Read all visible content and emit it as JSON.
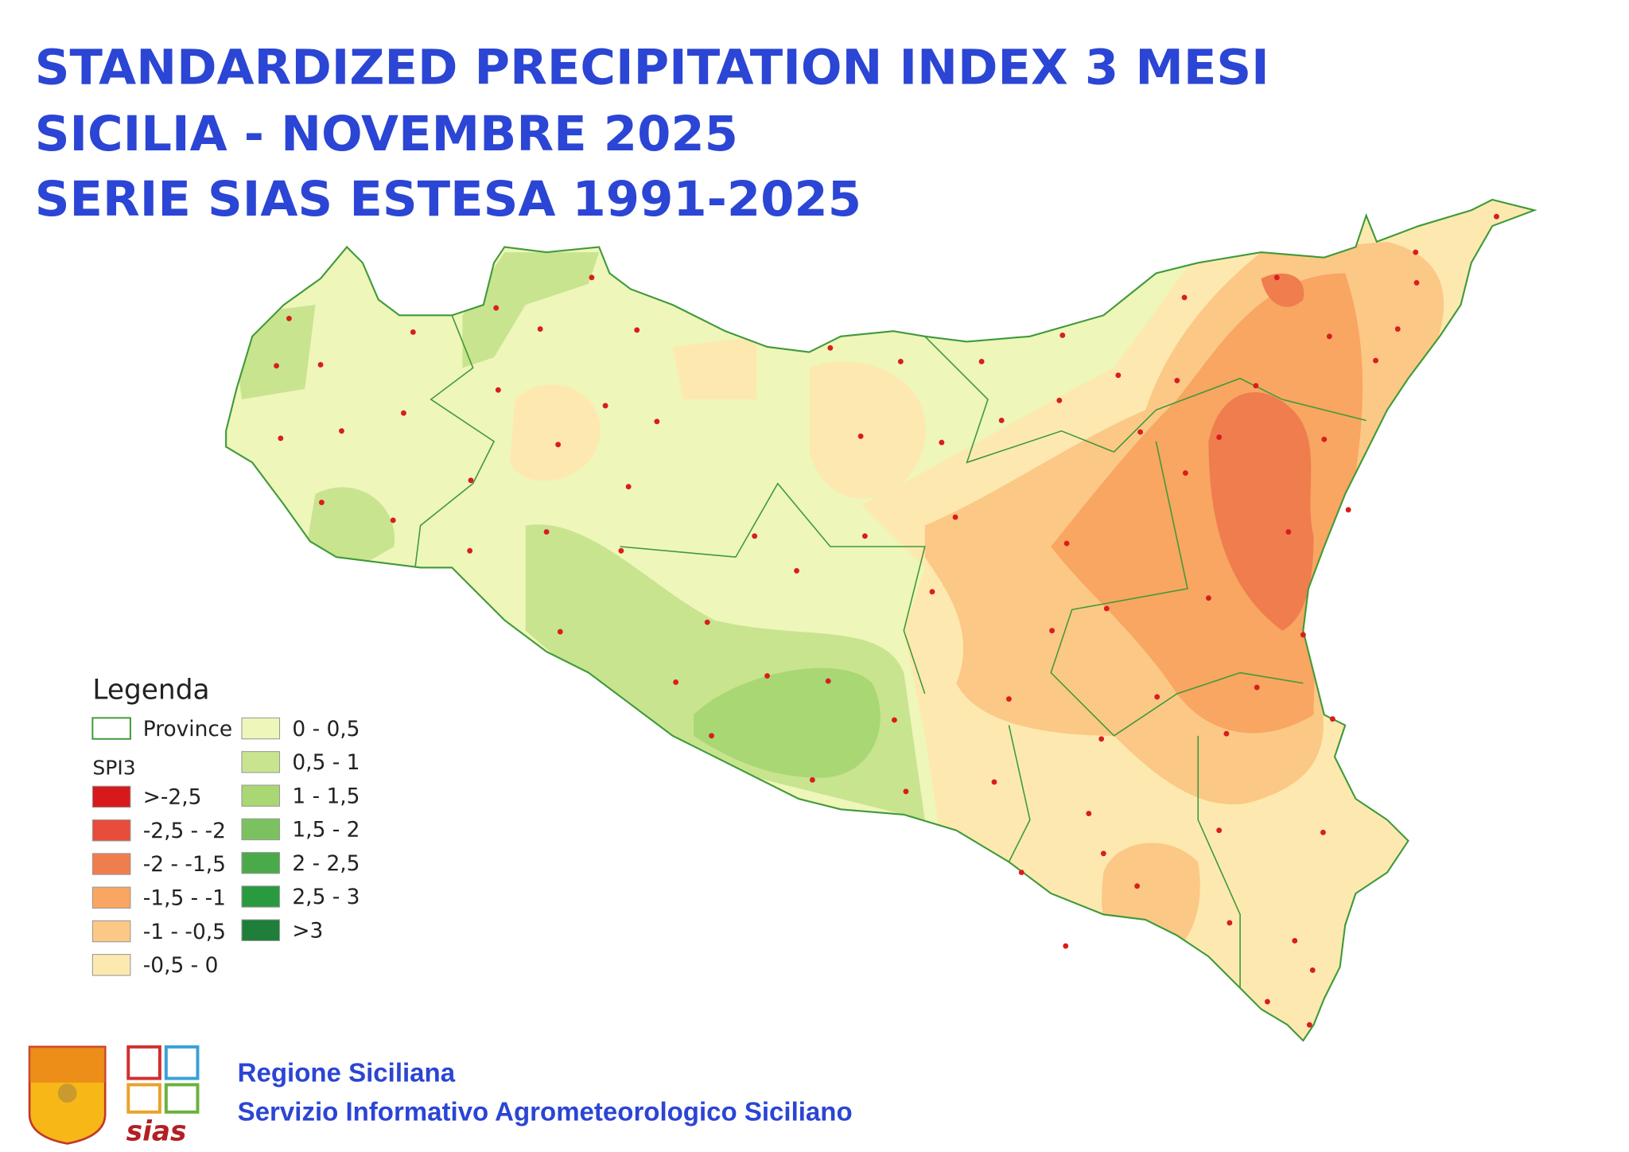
{
  "header": {
    "title_lines": [
      "STANDARDIZED PRECIPITATION INDEX 3 MESI",
      "SICILIA - NOVEMBRE 2025",
      "SERIE SIAS ESTESA 1991-2025"
    ]
  },
  "legend": {
    "title": "Legenda",
    "province_label": "Province",
    "province_color": "#3f9a3a",
    "index_label": "SPI3",
    "classes": [
      {
        "label": ">-2,5",
        "color": "#d7191c"
      },
      {
        "label": "-2,5 - -2",
        "color": "#e84c3a"
      },
      {
        "label": "-2 - -1,5",
        "color": "#f07d4e"
      },
      {
        "label": "-1,5 - -1",
        "color": "#f8a661"
      },
      {
        "label": "-1 - -0,5",
        "color": "#fcc886"
      },
      {
        "label": "-0,5 - 0",
        "color": "#fde9b0"
      },
      {
        "label": "0 - 0,5",
        "color": "#eef6b9"
      },
      {
        "label": "0,5 - 1",
        "color": "#c8e48f"
      },
      {
        "label": "1 - 1,5",
        "color": "#a9d774"
      },
      {
        "label": "1,5 - 2",
        "color": "#7cc160"
      },
      {
        "label": "2 - 2,5",
        "color": "#4aaa4a"
      },
      {
        "label": "2,5 - 3",
        "color": "#2a9a3e"
      },
      {
        "label": ">3",
        "color": "#1e7e3a"
      }
    ]
  },
  "footer": {
    "logo_text": "sias",
    "lines": [
      "Regione Siciliana",
      "Servizio Informativo Agrometeorologico Siciliano"
    ]
  }
}
